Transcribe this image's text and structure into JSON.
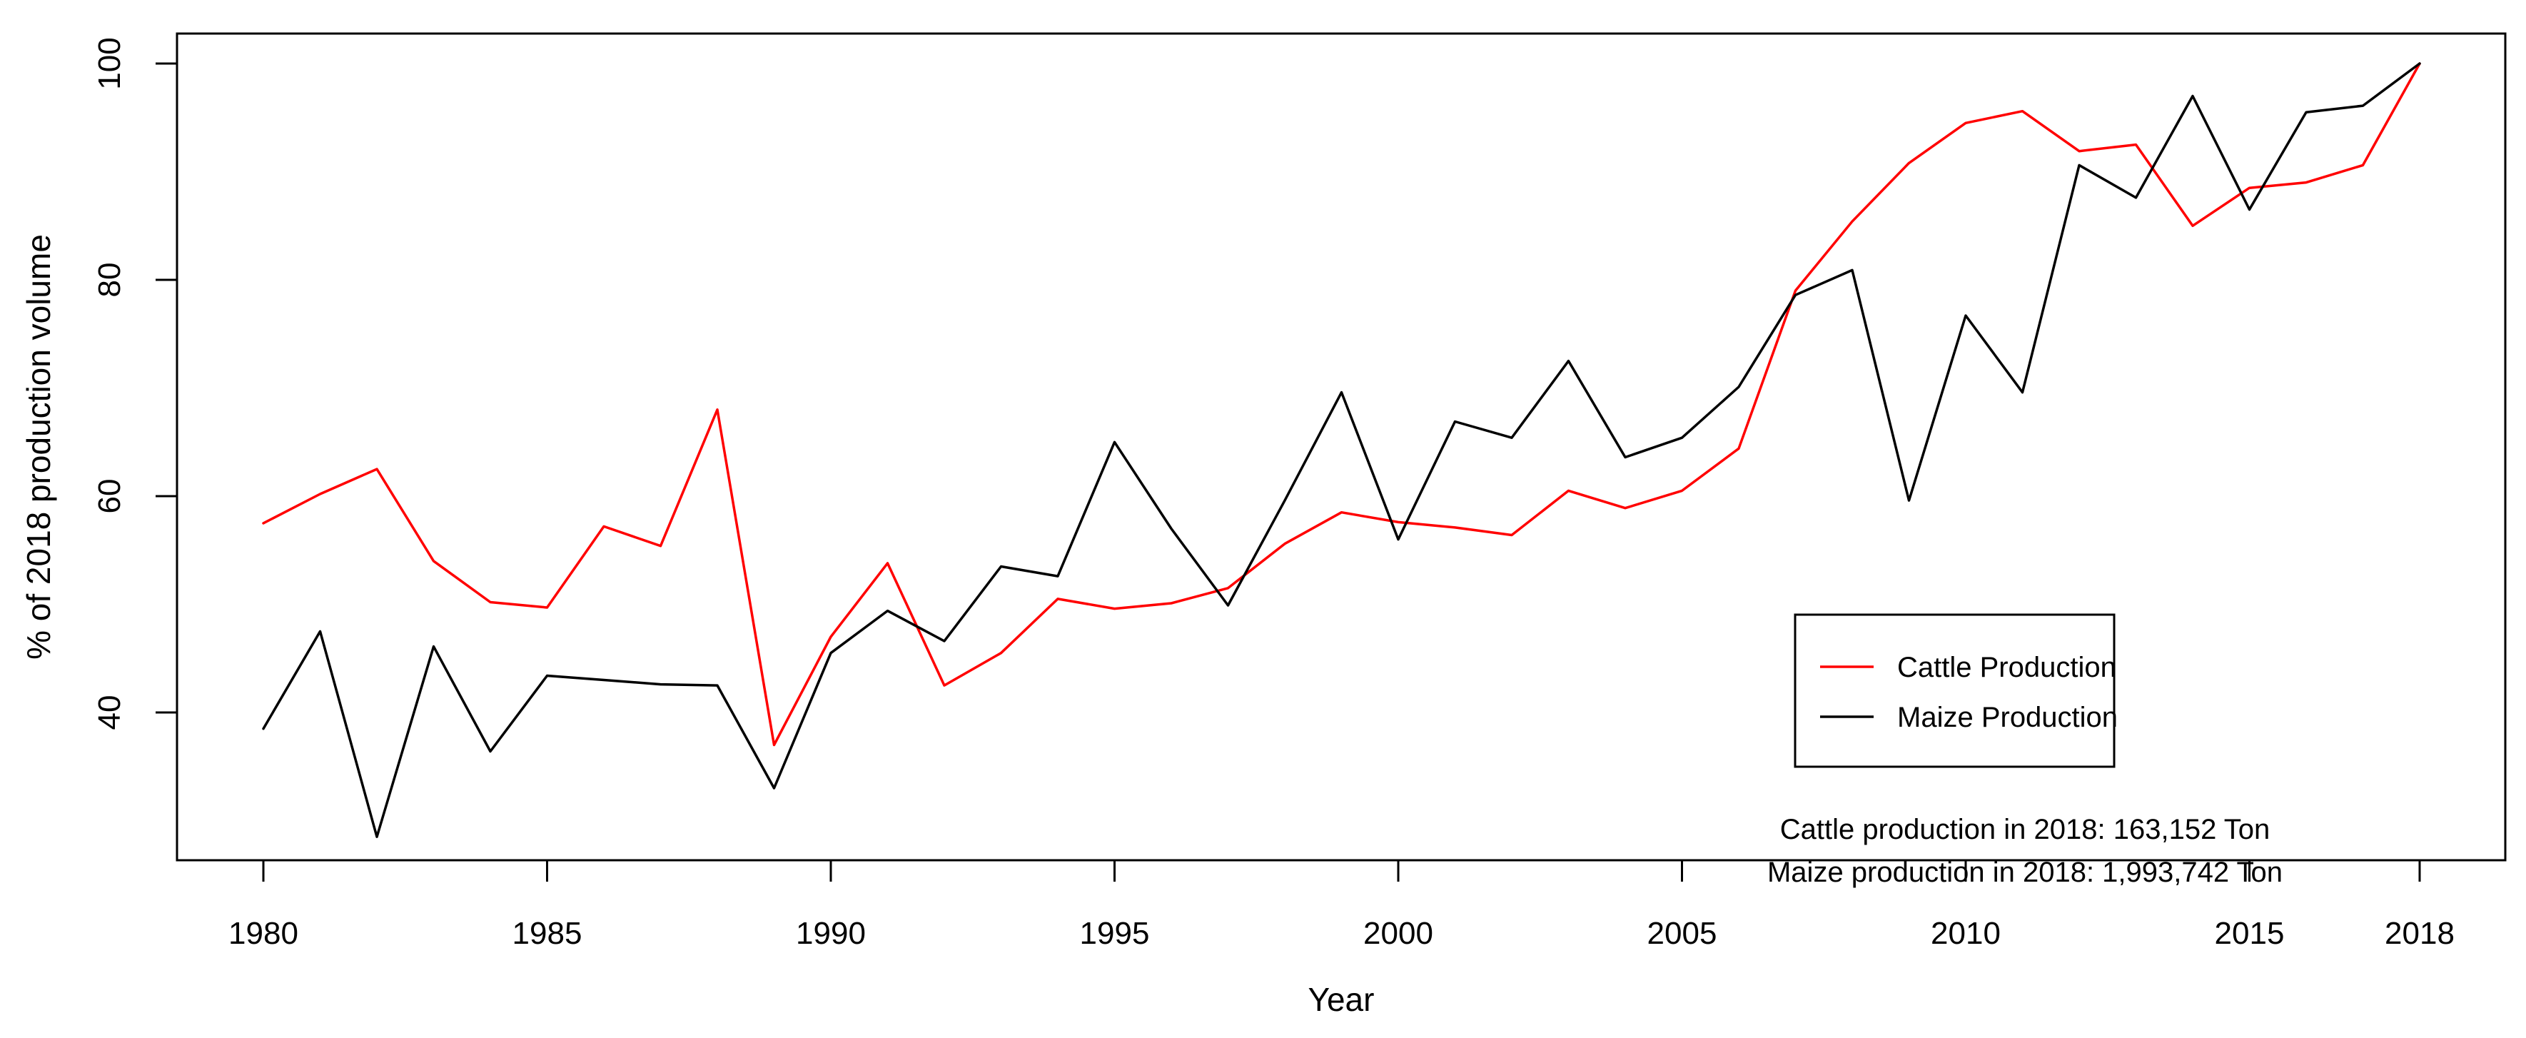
{
  "chart_data": {
    "type": "line",
    "title": "",
    "xlabel": "Year",
    "ylabel": "% of 2018 production volume",
    "grid": false,
    "legend_position": "right-center-inside",
    "xlim": [
      1978.5,
      2019.5
    ],
    "ylim": [
      26.3,
      102.8
    ],
    "x_ticks": [
      1980,
      1985,
      1990,
      1995,
      2000,
      2005,
      2010,
      2015,
      2018
    ],
    "y_ticks": [
      40,
      60,
      80,
      100
    ],
    "x": [
      1980,
      1981,
      1982,
      1983,
      1984,
      1985,
      1986,
      1987,
      1988,
      1989,
      1990,
      1991,
      1992,
      1993,
      1994,
      1995,
      1996,
      1997,
      1998,
      1999,
      2000,
      2001,
      2002,
      2003,
      2004,
      2005,
      2006,
      2007,
      2008,
      2009,
      2010,
      2011,
      2012,
      2013,
      2014,
      2015,
      2016,
      2017,
      2018
    ],
    "series": [
      {
        "name": "Cattle Production",
        "color": "#ff0000",
        "values": [
          57.5,
          60.2,
          62.5,
          54.0,
          50.2,
          49.7,
          57.2,
          55.4,
          68.0,
          37.0,
          47.0,
          53.8,
          42.5,
          45.5,
          50.5,
          49.6,
          50.1,
          51.5,
          55.6,
          58.5,
          57.6,
          57.1,
          56.4,
          60.5,
          58.9,
          60.5,
          64.4,
          79.0,
          85.4,
          90.8,
          94.5,
          95.6,
          91.9,
          92.5,
          85.0,
          88.5,
          89.0,
          90.6,
          100
        ]
      },
      {
        "name": "Maize Production",
        "color": "#000000",
        "values": [
          38.5,
          47.5,
          28.5,
          46.1,
          36.4,
          43.4,
          43.0,
          42.6,
          42.5,
          33.0,
          45.5,
          49.4,
          46.6,
          53.5,
          52.6,
          65.0,
          57.0,
          49.9,
          59.6,
          69.6,
          56.0,
          66.9,
          65.4,
          72.5,
          63.6,
          65.4,
          70.1,
          78.6,
          80.9,
          59.6,
          76.7,
          69.6,
          90.6,
          87.6,
          97.0,
          86.5,
          95.5,
          96.1,
          100
        ]
      }
    ],
    "annotations": [
      "Cattle production in 2018: 163,152 Ton",
      "Maize production in 2018: 1,993,742 Ton"
    ]
  }
}
